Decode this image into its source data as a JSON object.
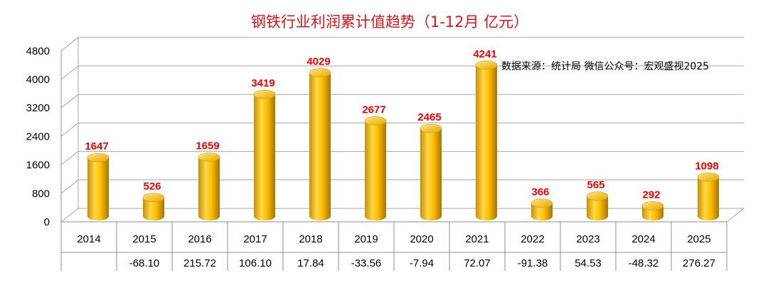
{
  "chart_data": {
    "type": "bar",
    "title": "钢铁行业利润累计值趋势（1-12月 亿元）",
    "annotation": "数据来源：统计局  微信公众号：宏观盛视2025",
    "categories": [
      "2014",
      "2015",
      "2016",
      "2017",
      "2018",
      "2019",
      "2020",
      "2021",
      "2022",
      "2023",
      "2024",
      "2025"
    ],
    "values": [
      1647,
      526,
      1659,
      3419,
      4029,
      2677,
      2465,
      4241,
      366,
      565,
      292,
      1098
    ],
    "data_labels": [
      "1647",
      "526",
      "1659",
      "3419",
      "4029",
      "2677",
      "2465",
      "4241",
      "366",
      "565",
      "292",
      "1098"
    ],
    "table_row": [
      "",
      "-68.10",
      "215.72",
      "106.10",
      "17.84",
      "-33.56",
      "-7.94",
      "72.07",
      "-91.38",
      "54.53",
      "-48.32",
      "276.27"
    ],
    "yticks": [
      "0",
      "800",
      "1600",
      "2400",
      "3200",
      "4000",
      "4800"
    ],
    "ylim": [
      0,
      4800
    ],
    "grid": true,
    "colors": {
      "bar": "#ffc000",
      "bar_dark": "#b8860b",
      "bar_light": "#ffe27a",
      "label": "#ff0000",
      "title": "#e8111a"
    }
  }
}
